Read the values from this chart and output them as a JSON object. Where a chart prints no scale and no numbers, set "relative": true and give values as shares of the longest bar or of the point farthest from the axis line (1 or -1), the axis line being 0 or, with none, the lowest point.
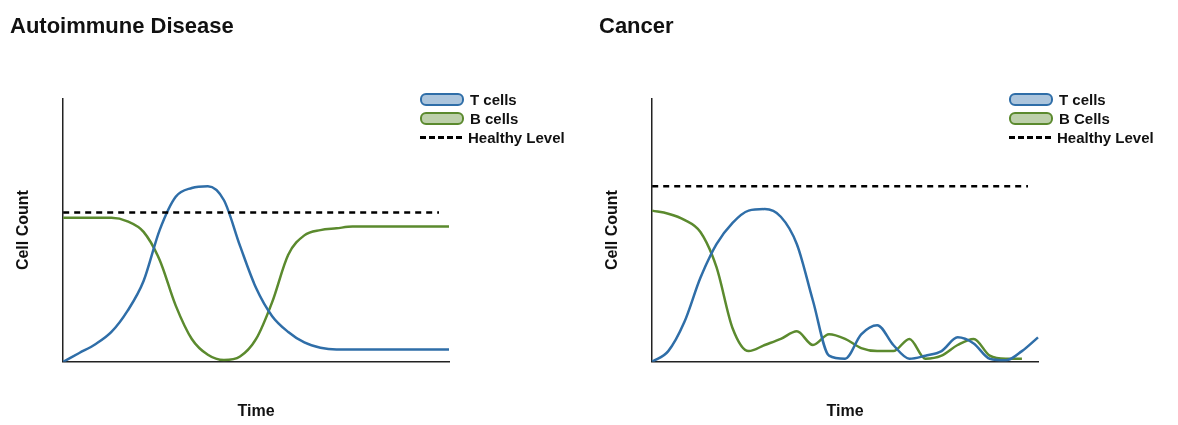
{
  "chart_data": [
    {
      "type": "line",
      "title": "Autoimmune Disease",
      "xlabel": "Time",
      "ylabel": "Cell Count",
      "relative": true,
      "tick_labels": false,
      "legend": "top right",
      "categories": [
        null,
        null,
        null,
        null,
        null,
        null,
        null,
        null,
        null,
        null,
        null,
        null,
        null,
        null,
        null,
        null,
        null,
        null,
        null,
        null,
        null,
        null,
        null,
        null,
        null
      ],
      "series": [
        {
          "name": "T cells",
          "color": "#2f6ea8",
          "values": [
            0,
            0.05,
            0.1,
            0.17,
            0.29,
            0.46,
            0.75,
            0.94,
            0.99,
            1,
            0.92,
            0.66,
            0.42,
            0.26,
            0.17,
            0.11,
            0.08,
            0.07,
            0.07,
            0.07,
            0.07,
            0.07,
            0.07,
            0.07,
            0.07
          ]
        },
        {
          "name": "B cells",
          "color": "#5b8a2e",
          "values": [
            0.82,
            0.82,
            0.82,
            0.82,
            0.8,
            0.74,
            0.58,
            0.32,
            0.13,
            0.04,
            0.01,
            0.03,
            0.13,
            0.34,
            0.61,
            0.72,
            0.75,
            0.76,
            0.77,
            0.77,
            0.77,
            0.77,
            0.77,
            0.77,
            0.77
          ]
        }
      ],
      "ref_lines": [
        {
          "axis": "y",
          "value": 0.85,
          "label": "Healthy Level",
          "color": "#000000",
          "line_style": "dashed"
        }
      ]
    },
    {
      "type": "line",
      "title": "Cancer",
      "xlabel": "Time",
      "ylabel": "Cell Count",
      "relative": true,
      "tick_labels": false,
      "legend": "top right",
      "categories": [
        null,
        null,
        null,
        null,
        null,
        null,
        null,
        null,
        null,
        null,
        null,
        null,
        null,
        null,
        null,
        null,
        null,
        null,
        null,
        null,
        null,
        null,
        null,
        null,
        null
      ],
      "series": [
        {
          "name": "T cells",
          "color": "#2f6ea8",
          "values": [
            0,
            0.07,
            0.26,
            0.55,
            0.77,
            0.91,
            0.99,
            1,
            0.95,
            0.77,
            0.4,
            0.04,
            0.02,
            0.18,
            0.24,
            0.11,
            0.02,
            0.04,
            0.07,
            0.16,
            0.12,
            0.02,
            0.01,
            0.07,
            0.16
          ]
        },
        {
          "name": "B Cells",
          "color": "#5b8a2e",
          "values": [
            0.99,
            0.97,
            0.93,
            0.85,
            0.62,
            0.22,
            0.07,
            0.11,
            0.15,
            0.2,
            0.11,
            0.18,
            0.15,
            0.09,
            0.07,
            0.07,
            0.15,
            0.02,
            0.04,
            0.11,
            0.15,
            0.04,
            0.02,
            0.02,
            null
          ]
        }
      ],
      "ref_lines": [
        {
          "axis": "y",
          "value": 1.15,
          "label": "Healthy Level",
          "color": "#000000",
          "line_style": "dashed"
        }
      ]
    }
  ]
}
